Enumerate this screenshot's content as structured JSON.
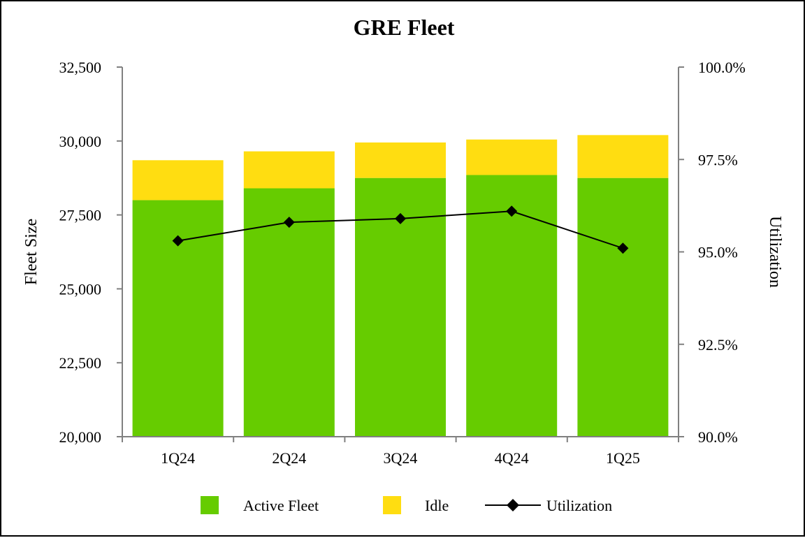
{
  "chart_data": {
    "type": "bar",
    "title": "GRE Fleet",
    "categories": [
      "1Q24",
      "2Q24",
      "3Q24",
      "4Q24",
      "1Q25"
    ],
    "series": [
      {
        "name": "Active Fleet",
        "kind": "stacked-bar",
        "axis": "left",
        "color": "#66CC00",
        "values": [
          28000,
          28400,
          28750,
          28850,
          28750
        ]
      },
      {
        "name": "Idle",
        "kind": "stacked-bar",
        "axis": "left",
        "color": "#FFDD11",
        "values": [
          1350,
          1250,
          1200,
          1200,
          1450
        ]
      },
      {
        "name": "Utilization",
        "kind": "line",
        "axis": "right",
        "color": "#000000",
        "values": [
          95.3,
          95.8,
          95.9,
          96.1,
          95.1
        ]
      }
    ],
    "ylabel": "Fleet Size",
    "ylabel_right": "Utilization",
    "ylim": [
      20000,
      32500
    ],
    "ylim_right": [
      90.0,
      100.0
    ],
    "yticks": [
      20000,
      22500,
      25000,
      27500,
      30000,
      32500
    ],
    "yticks_labels": [
      "20,000",
      "22,500",
      "25,000",
      "27,500",
      "30,000",
      "32,500"
    ],
    "yticks_right": [
      90.0,
      92.5,
      95.0,
      97.5,
      100.0
    ],
    "yticks_right_labels": [
      "90.0%",
      "92.5%",
      "95.0%",
      "97.5%",
      "100.0%"
    ],
    "legend_position": "bottom"
  }
}
